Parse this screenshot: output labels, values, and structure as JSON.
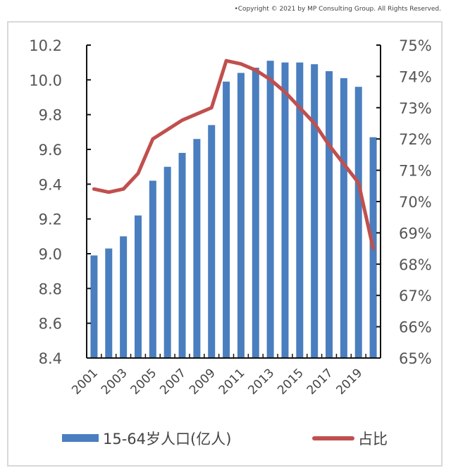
{
  "copyright": "•Copyright © 2021 by MP Consulting Group. All Rights Reserved.",
  "chart_data": {
    "type": "bar+line",
    "categories": [
      "2001",
      "2002",
      "2003",
      "2004",
      "2005",
      "2006",
      "2007",
      "2008",
      "2009",
      "2010",
      "2011",
      "2012",
      "2013",
      "2014",
      "2015",
      "2016",
      "2017",
      "2018",
      "2019",
      "2020"
    ],
    "x_tick_labels": [
      "2001",
      "2003",
      "2005",
      "2007",
      "2009",
      "2011",
      "2013",
      "2015",
      "2017",
      "2019"
    ],
    "series": [
      {
        "name": "15-64岁人口(亿人)",
        "type": "bar",
        "axis": "left",
        "color": "#4a7ebf",
        "values": [
          8.99,
          9.03,
          9.1,
          9.22,
          9.42,
          9.5,
          9.58,
          9.66,
          9.74,
          9.99,
          10.04,
          10.07,
          10.11,
          10.1,
          10.1,
          10.09,
          10.05,
          10.01,
          9.96,
          9.67
        ]
      },
      {
        "name": "占比",
        "type": "line",
        "axis": "right",
        "color": "#c0504d",
        "values": [
          70.4,
          70.3,
          70.4,
          70.9,
          72.0,
          72.3,
          72.6,
          72.8,
          73.0,
          74.5,
          74.4,
          74.2,
          73.9,
          73.5,
          73.0,
          72.5,
          71.8,
          71.2,
          70.6,
          68.5
        ]
      }
    ],
    "y_left": {
      "range": [
        8.4,
        10.2
      ],
      "ticks": [
        "8.4",
        "8.6",
        "8.8",
        "9.0",
        "9.2",
        "9.4",
        "9.6",
        "9.8",
        "10.0",
        "10.2"
      ]
    },
    "y_right": {
      "range": [
        65,
        75
      ],
      "ticks": [
        "65%",
        "66%",
        "67%",
        "68%",
        "69%",
        "70%",
        "71%",
        "72%",
        "73%",
        "74%",
        "75%"
      ]
    },
    "grid": false,
    "legend": "bottom"
  }
}
